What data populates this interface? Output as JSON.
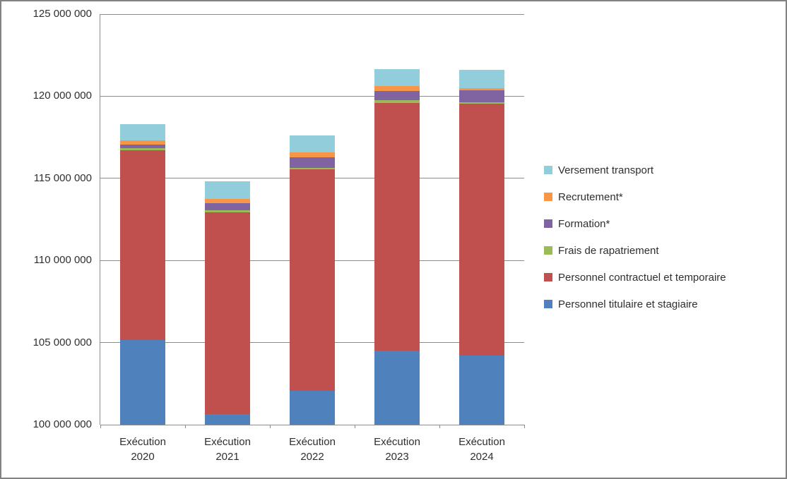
{
  "chart_data": {
    "type": "bar",
    "stacked": true,
    "title": "",
    "xlabel": "",
    "ylabel": "",
    "grid": true,
    "legend_position": "right",
    "ylim": [
      100000000,
      125000000
    ],
    "yticks": [
      {
        "value": 100000000,
        "label": "100 000 000"
      },
      {
        "value": 105000000,
        "label": "105 000 000"
      },
      {
        "value": 110000000,
        "label": "110 000 000"
      },
      {
        "value": 115000000,
        "label": "115 000 000"
      },
      {
        "value": 120000000,
        "label": "120 000 000"
      },
      {
        "value": 125000000,
        "label": "125 000 000"
      }
    ],
    "categories": [
      "Exécution\n2020",
      "Exécution\n2021",
      "Exécution\n2022",
      "Exécution\n2023",
      "Exécution\n2024"
    ],
    "series": [
      {
        "name": "Personnel titulaire et stagiaire",
        "color": "#4F81BD",
        "absolute_base": true,
        "values": [
          105150000,
          100650000,
          102050000,
          104500000,
          104200000
        ]
      },
      {
        "name": "Personnel contractuel et temporaire",
        "color": "#C0504D",
        "values": [
          11550000,
          12300000,
          13500000,
          15100000,
          15350000
        ]
      },
      {
        "name": "Frais de rapatriement",
        "color": "#9BBB59",
        "values": [
          150000,
          100000,
          100000,
          150000,
          100000
        ]
      },
      {
        "name": "Formation*",
        "color": "#8064A2",
        "values": [
          200000,
          450000,
          650000,
          550000,
          700000
        ]
      },
      {
        "name": "Recrutement*",
        "color": "#F79646",
        "values": [
          250000,
          250000,
          300000,
          300000,
          150000
        ]
      },
      {
        "name": "Versement transport",
        "color": "#92CDDC",
        "values": [
          1000000,
          1050000,
          1000000,
          1050000,
          1100000
        ]
      }
    ],
    "totals": [
      118300000,
      114800000,
      117600000,
      121650000,
      121600000
    ]
  },
  "legend": {
    "items": [
      {
        "label": "Versement transport",
        "color": "#92CDDC"
      },
      {
        "label": "Recrutement*",
        "color": "#F79646"
      },
      {
        "label": "Formation*",
        "color": "#8064A2"
      },
      {
        "label": "Frais de rapatriement",
        "color": "#9BBB59"
      },
      {
        "label": "Personnel contractuel et temporaire",
        "color": "#C0504D"
      },
      {
        "label": "Personnel titulaire et stagiaire",
        "color": "#4F81BD"
      }
    ]
  }
}
